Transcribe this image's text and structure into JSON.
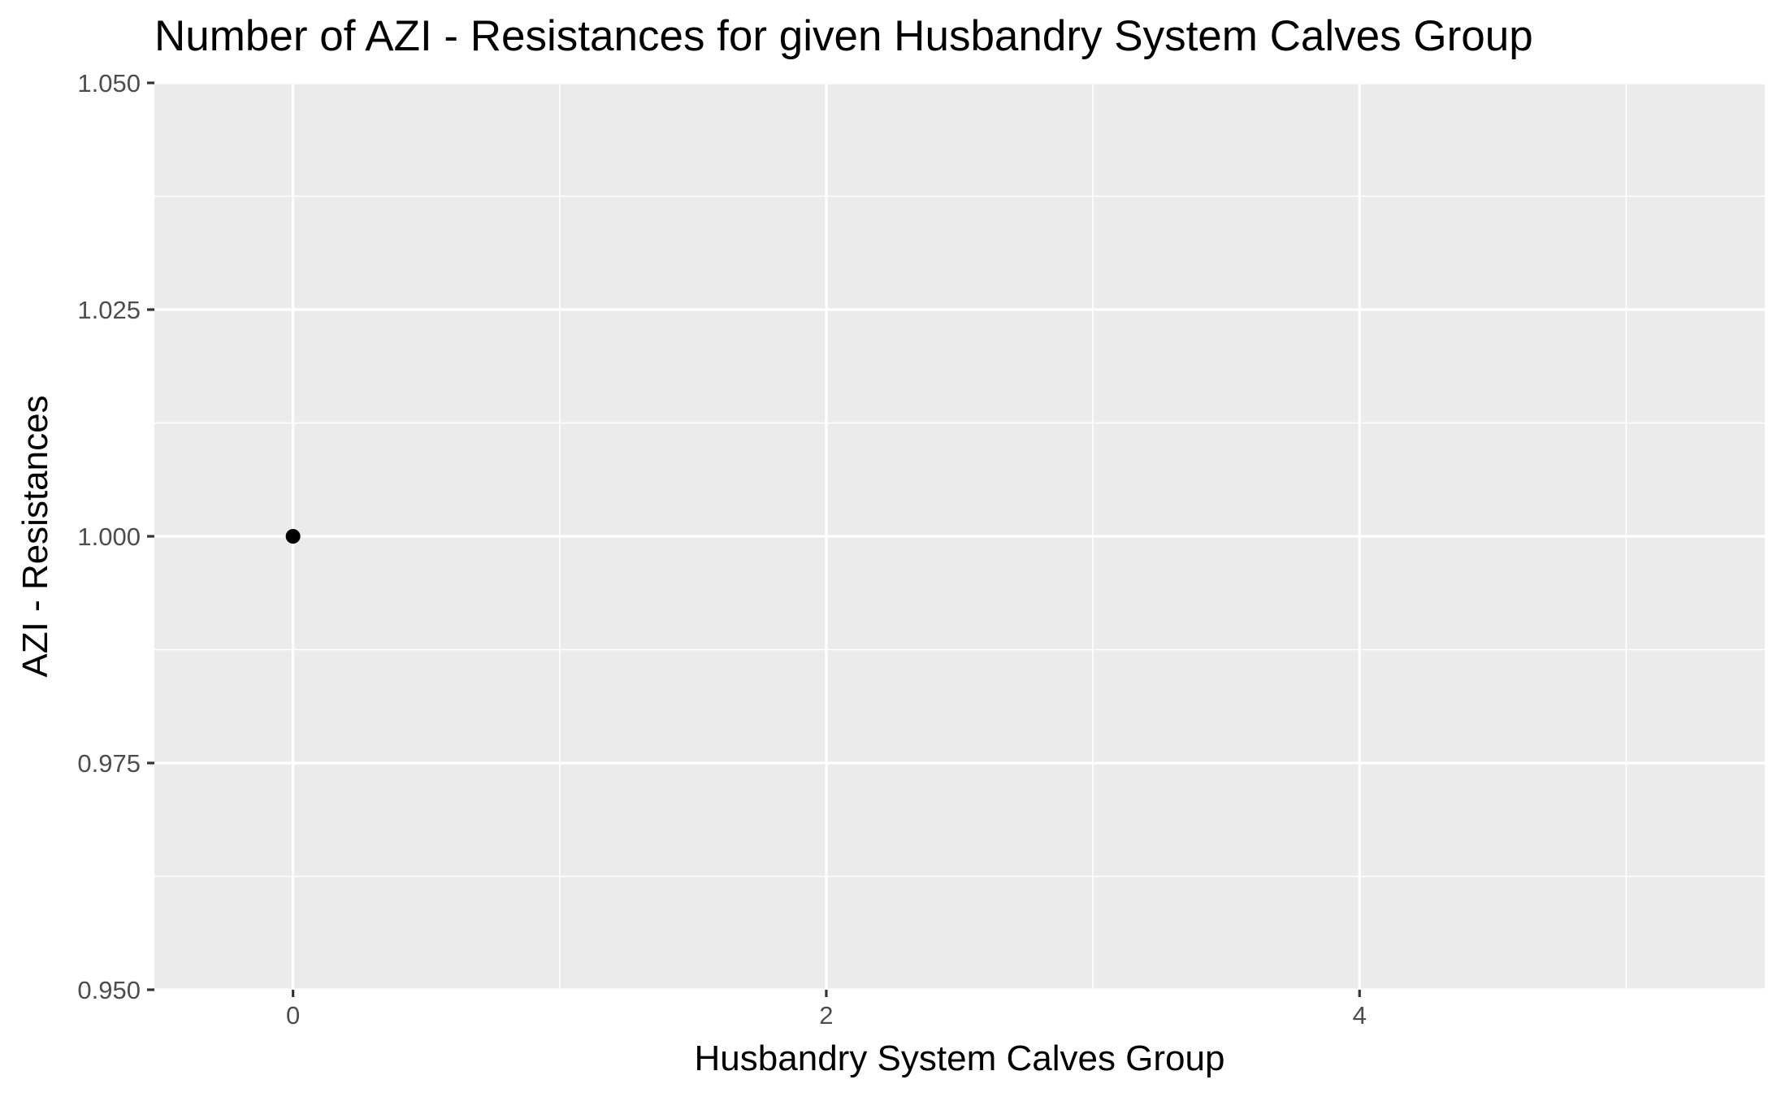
{
  "chart_data": {
    "type": "scatter",
    "title": "Number of AZI - Resistances for given Husbandry System Calves Group",
    "xlabel": "Husbandry System Calves Group",
    "ylabel": "AZI - Resistances",
    "xlim": [
      -0.52,
      5.52
    ],
    "ylim": [
      0.95,
      1.05
    ],
    "x_ticks": [
      0,
      2,
      4
    ],
    "x_tick_labels": [
      "0",
      "2",
      "4"
    ],
    "x_minor_ticks": [
      1,
      3,
      5
    ],
    "y_ticks": [
      0.95,
      0.975,
      1.0,
      1.025,
      1.05
    ],
    "y_tick_labels": [
      "0.950",
      "0.975",
      "1.000",
      "1.025",
      "1.050"
    ],
    "y_minor_ticks": [
      0.9625,
      0.9875,
      1.0125,
      1.0375
    ],
    "grid": true,
    "legend": "none",
    "colors": {
      "panel_background": "#ebebeb",
      "grid": "#ffffff",
      "point": "#000000",
      "tick_label": "#4d4d4d"
    },
    "points": [
      {
        "x": 0,
        "y": 1.0
      }
    ]
  }
}
